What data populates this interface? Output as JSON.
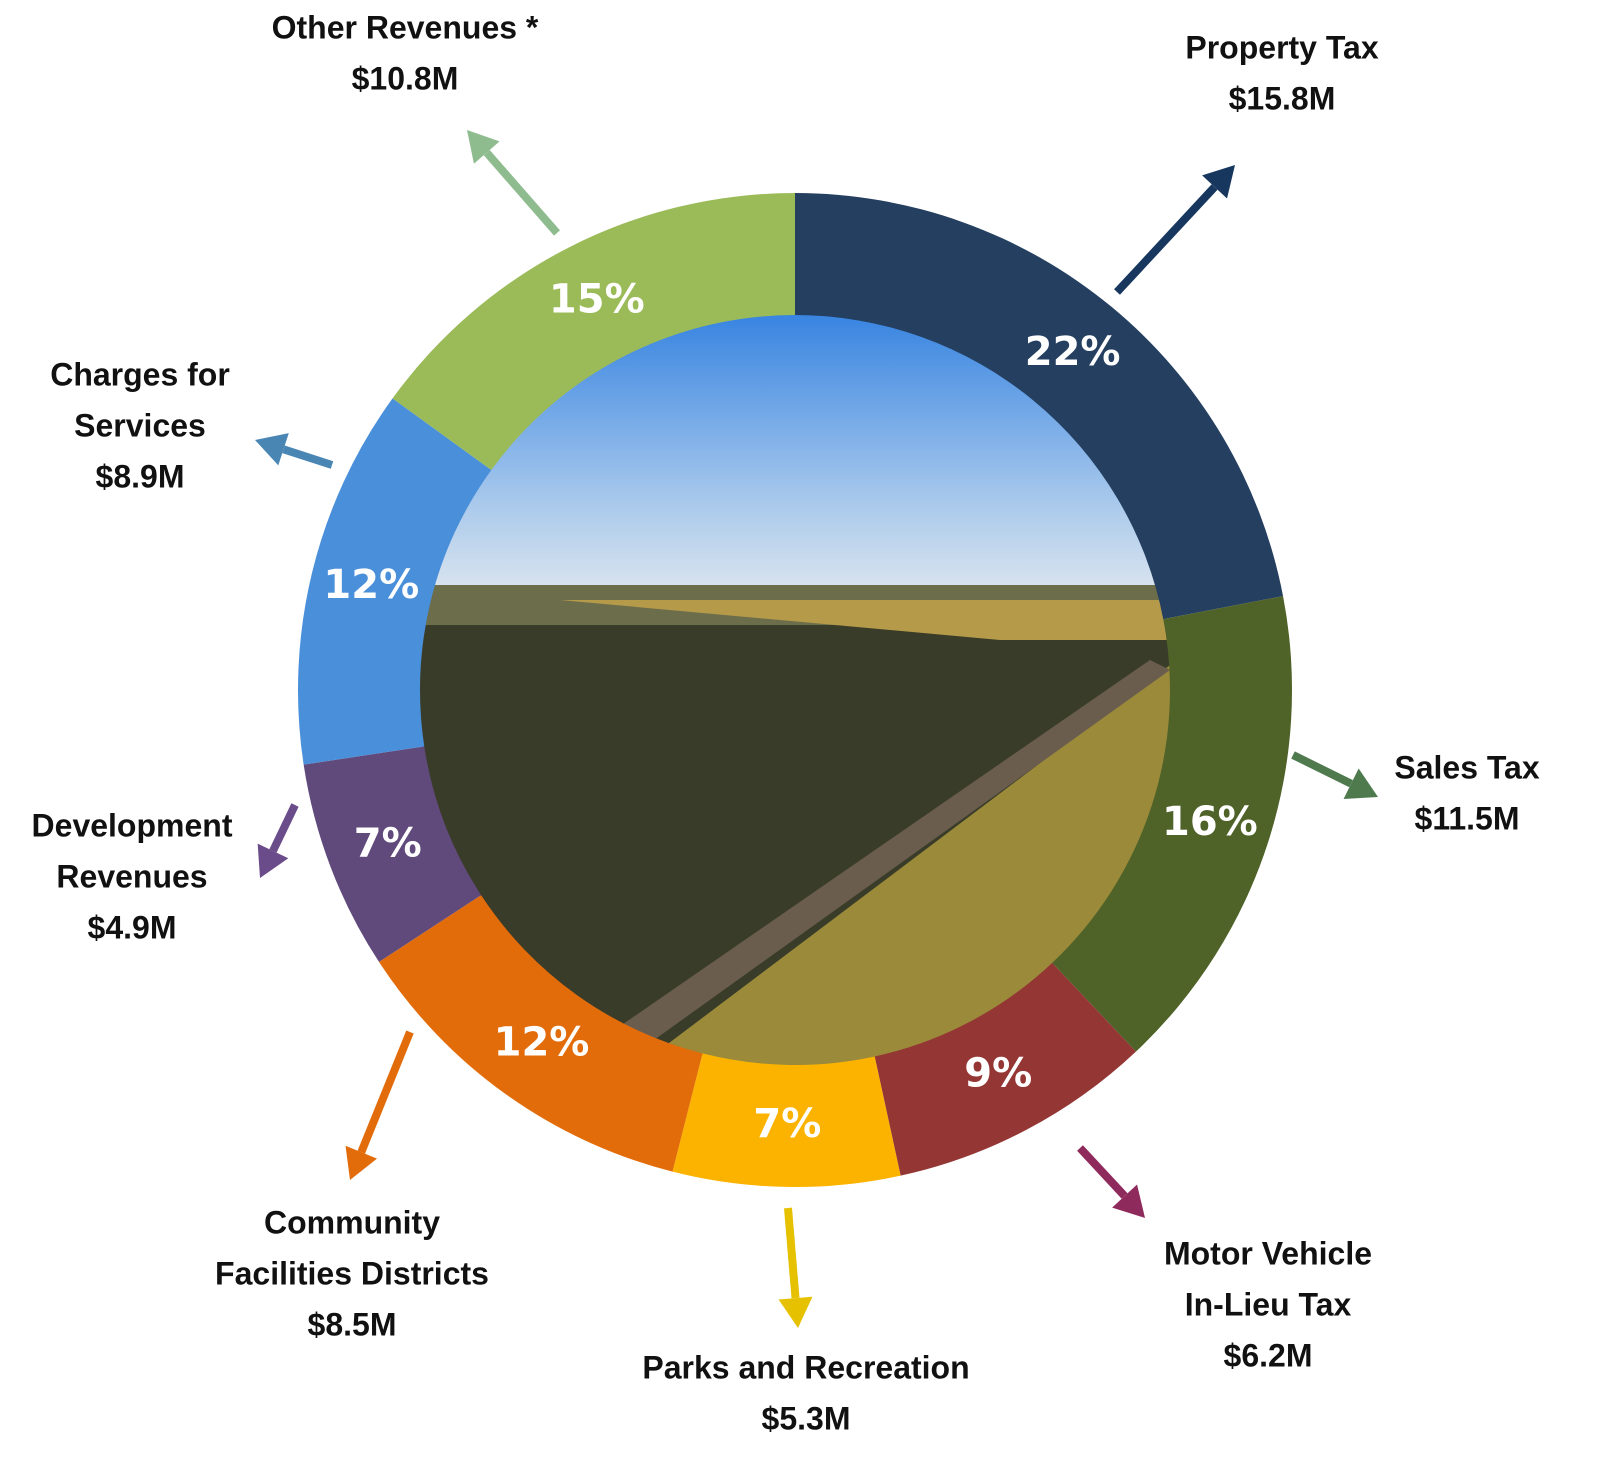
{
  "chart_data": {
    "type": "donut",
    "categories": [
      [
        "Property Tax"
      ],
      [
        "Sales Tax"
      ],
      [
        "Motor Vehicle",
        "In-Lieu Tax"
      ],
      [
        "Parks and Recreation"
      ],
      [
        "Community",
        "Facilities Districts"
      ],
      [
        "Development",
        "Revenues"
      ],
      [
        "Charges for",
        "Services"
      ],
      [
        "Other Revenues *"
      ]
    ],
    "values": [
      15800000,
      11500000,
      6200000,
      5300000,
      8500000,
      4900000,
      8900000,
      10800000
    ],
    "value_labels": [
      "$15.8M",
      "$11.5M",
      "$6.2M",
      "$5.3M",
      "$8.5M",
      "$4.9M",
      "$8.9M",
      "$10.8M"
    ],
    "percent_labels": [
      "22%",
      "16%",
      "9%",
      "7%",
      "12%",
      "7%",
      "12%",
      "15%"
    ],
    "colors": [
      "#243f60",
      "#4f6228",
      "#943634",
      "#fbb300",
      "#e36c0a",
      "#604a7b",
      "#4a8fd9",
      "#9bbb59"
    ],
    "arrow_colors": [
      "#17375e",
      "#4e7a4e",
      "#8f2a5c",
      "#e6c100",
      "#e36c0a",
      "#6b4c8a",
      "#4a86b4",
      "#8fbc8f"
    ]
  }
}
